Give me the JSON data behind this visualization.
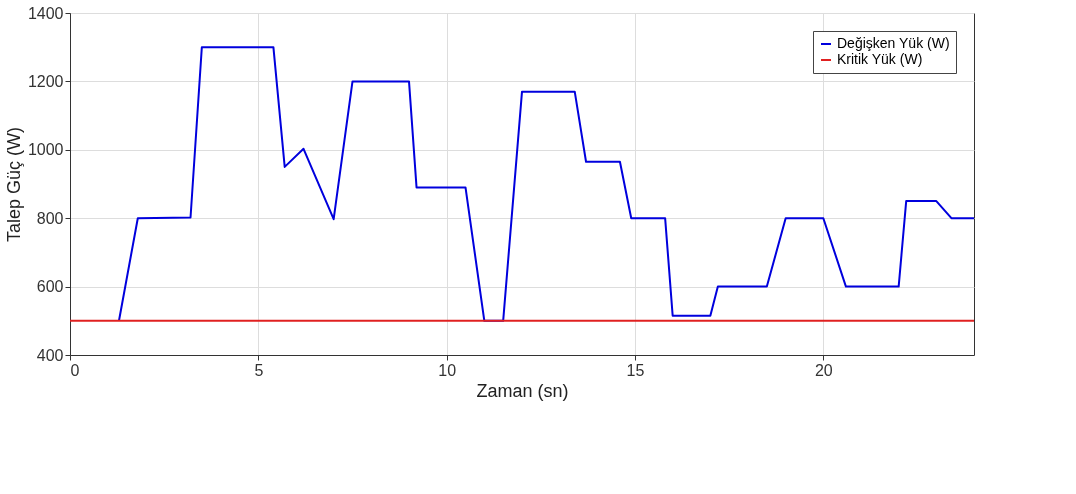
{
  "chart_data": {
    "type": "line",
    "xlabel": "Zaman (sn)",
    "ylabel": "Talep Güç (W)",
    "xlim": [
      0,
      24
    ],
    "xticks": [
      0,
      5,
      10,
      15,
      20
    ],
    "ylim": [
      400,
      1400
    ],
    "yticks": [
      400,
      600,
      800,
      1000,
      1200,
      1400
    ],
    "grid": true,
    "legend": "top right",
    "line_style": "solid",
    "marker": "none",
    "series": [
      {
        "name": "Değişken Yük (W)",
        "color": "#0000dd",
        "x": [
          1.3,
          1.8,
          3.2,
          3.5,
          5.4,
          5.7,
          6.2,
          7.0,
          7.5,
          9.0,
          9.2,
          10.5,
          11.0,
          11.5,
          12.0,
          13.4,
          13.7,
          14.6,
          14.9,
          15.8,
          16.0,
          17.0,
          17.2,
          18.5,
          19.0,
          20.0,
          20.6,
          22.0,
          22.2,
          23.0,
          23.4,
          24.0
        ],
        "values": [
          500,
          800,
          802,
          1300,
          1300,
          950,
          1003,
          797,
          1200,
          1200,
          890,
          890,
          500,
          500,
          1170,
          1170,
          965,
          965,
          800,
          800,
          515,
          515,
          600,
          600,
          800,
          800,
          600,
          600,
          850,
          850,
          800,
          800
        ]
      },
      {
        "name": "Kritik Yük (W)",
        "color": "#e02020",
        "x": [
          0,
          24
        ],
        "values": [
          500,
          500
        ]
      }
    ]
  }
}
